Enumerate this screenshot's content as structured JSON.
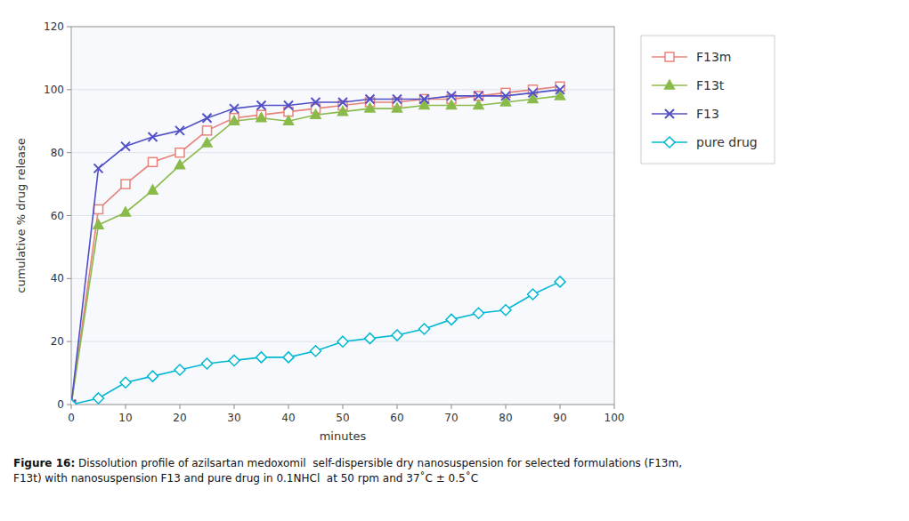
{
  "chart_data": {
    "type": "line",
    "x": [
      0,
      5,
      10,
      15,
      20,
      25,
      30,
      35,
      40,
      45,
      50,
      55,
      60,
      65,
      70,
      75,
      80,
      85,
      90
    ],
    "series": [
      {
        "name": "F13m",
        "color": "#e8827a",
        "marker": "square-open",
        "values": [
          0,
          62,
          70,
          77,
          80,
          87,
          91,
          92,
          93,
          94,
          95,
          96,
          96,
          97,
          97,
          98,
          99,
          100,
          101
        ]
      },
      {
        "name": "F13t",
        "color": "#8aba4a",
        "marker": "triangle",
        "values": [
          0,
          57,
          61,
          68,
          76,
          83,
          90,
          91,
          90,
          92,
          93,
          94,
          94,
          95,
          95,
          95,
          96,
          97,
          98
        ]
      },
      {
        "name": "F13",
        "color": "#5050c8",
        "marker": "x",
        "values": [
          0,
          75,
          82,
          85,
          87,
          91,
          94,
          95,
          95,
          96,
          96,
          97,
          97,
          97,
          98,
          98,
          98,
          99,
          100
        ]
      },
      {
        "name": "pure drug",
        "color": "#00b8d4",
        "marker": "diamond-open",
        "values": [
          0,
          2,
          7,
          9,
          11,
          13,
          14,
          15,
          15,
          17,
          20,
          21,
          22,
          24,
          27,
          29,
          30,
          35,
          39
        ]
      }
    ],
    "xlabel": "minutes",
    "ylabel": "cumulative % drug release",
    "xlim": [
      0,
      100
    ],
    "ylim": [
      0,
      120
    ],
    "xticks": [
      0,
      10,
      20,
      30,
      40,
      50,
      60,
      70,
      80,
      90,
      100
    ],
    "yticks": [
      0,
      20,
      40,
      60,
      80,
      100,
      120
    ],
    "grid": "y",
    "legend": "right",
    "annotations": [
      {
        "text": "Figure 16:"
      },
      {
        "text": " Dissolution profile of azilsartan medoxomil  self-dispersible dry nanosuspension for selected formulations (F13m,\nF13t) with nanosuspension F13 and pure drug in 0.1NHCl  at 50 rpm and 37˚C ± 0.5˚C"
      }
    ]
  }
}
